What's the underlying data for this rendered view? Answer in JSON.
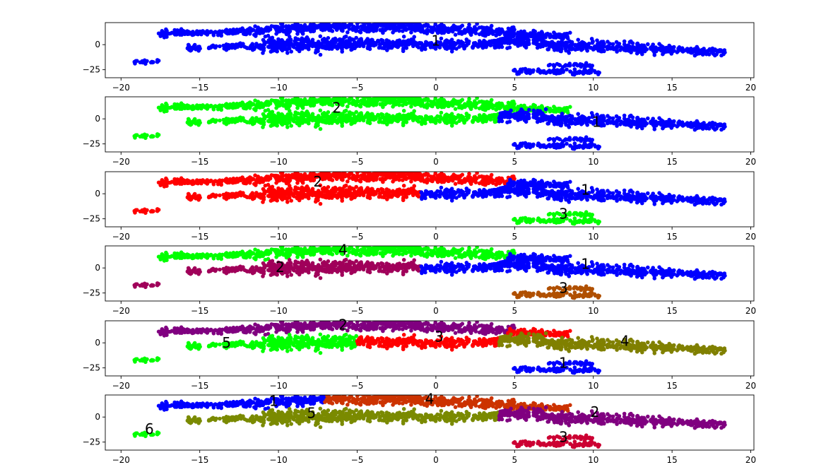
{
  "chart_data": {
    "type": "scatter",
    "xlim": [
      -21,
      20.2
    ],
    "ylim": [
      -33,
      22
    ],
    "xticks": [
      "−20",
      "−15",
      "−10",
      "−5",
      "0",
      "5",
      "10",
      "15",
      "20"
    ],
    "xtick_values": [
      -20,
      -15,
      -10,
      -5,
      0,
      5,
      10,
      15,
      20
    ],
    "yticks": [
      "0",
      "−25"
    ],
    "ytick_values": [
      0,
      -25
    ],
    "grid": false,
    "segments": [
      {
        "id": "s1",
        "x": [
          -17.7,
          -15.8
        ],
        "y": [
          9,
          14
        ],
        "w": 1.2
      },
      {
        "id": "s2",
        "x": [
          -15.8,
          -11.5
        ],
        "y": [
          11,
          14
        ],
        "w": 1.0
      },
      {
        "id": "s3",
        "x": [
          -11.5,
          -7.0
        ],
        "y": [
          14,
          18
        ],
        "w": 1.6
      },
      {
        "id": "s4",
        "x": [
          -7.0,
          -1.0
        ],
        "y": [
          17,
          19
        ],
        "w": 1.8
      },
      {
        "id": "s5",
        "x": [
          -1.0,
          5.0
        ],
        "y": [
          16,
          13
        ],
        "w": 1.4
      },
      {
        "id": "s6",
        "x": [
          4.5,
          8.5
        ],
        "y": [
          10,
          9
        ],
        "w": 1.2
      },
      {
        "id": "s7",
        "x": [
          -15.8,
          -11.0
        ],
        "y": [
          -3,
          -1
        ],
        "w": 1.0
      },
      {
        "id": "s8",
        "x": [
          -11.0,
          -5.0
        ],
        "y": [
          0,
          1
        ],
        "w": 2.2
      },
      {
        "id": "s9",
        "x": [
          -5.0,
          -1.0
        ],
        "y": [
          1,
          0
        ],
        "w": 1.6
      },
      {
        "id": "s10",
        "x": [
          -1.0,
          4.0
        ],
        "y": [
          -1,
          2
        ],
        "w": 1.4
      },
      {
        "id": "s11",
        "x": [
          4.0,
          7.0
        ],
        "y": [
          3,
          3
        ],
        "w": 1.8
      },
      {
        "id": "s12",
        "x": [
          7.0,
          11.0
        ],
        "y": [
          0,
          -2
        ],
        "w": 1.8
      },
      {
        "id": "s13",
        "x": [
          11.0,
          15.0
        ],
        "y": [
          -2,
          -5
        ],
        "w": 1.6
      },
      {
        "id": "s14",
        "x": [
          15.0,
          18.4
        ],
        "y": [
          -5,
          -8
        ],
        "w": 1.2
      },
      {
        "id": "s15",
        "x": [
          -19.2,
          -17.6
        ],
        "y": [
          -17,
          -17
        ],
        "w": 0.5
      },
      {
        "id": "s16",
        "x": [
          5.0,
          10.5
        ],
        "y": [
          -26.5,
          -27.5
        ],
        "w": 0.8
      },
      {
        "id": "s17",
        "x": [
          7.2,
          10.0
        ],
        "y": [
          -20.5,
          -20.5
        ],
        "w": 0.5
      }
    ],
    "panels": [
      {
        "assign": {
          "s1": "#0000ff",
          "s2": "#0000ff",
          "s3": "#0000ff",
          "s4": "#0000ff",
          "s5": "#0000ff",
          "s6": "#0000ff",
          "s7": "#0000ff",
          "s8": "#0000ff",
          "s9": "#0000ff",
          "s10": "#0000ff",
          "s11": "#0000ff",
          "s12": "#0000ff",
          "s13": "#0000ff",
          "s14": "#0000ff",
          "s15": "#0000ff",
          "s16": "#0000ff",
          "s17": "#0000ff"
        },
        "labels": [
          {
            "text": "1",
            "x": 0,
            "y": 4
          }
        ]
      },
      {
        "assign": {
          "s1": "#00ff00",
          "s2": "#00ff00",
          "s3": "#00ff00",
          "s4": "#00ff00",
          "s5": "#00ff00",
          "s6": "#00ff00",
          "s7": "#00ff00",
          "s8": "#00ff00",
          "s9": "#00ff00",
          "s10": "#00ff00",
          "s11": "#0000ff",
          "s12": "#0000ff",
          "s13": "#0000ff",
          "s14": "#0000ff",
          "s15": "#00ff00",
          "s16": "#0000ff",
          "s17": "#0000ff"
        },
        "labels": [
          {
            "text": "2",
            "x": -6.3,
            "y": 11
          },
          {
            "text": "1",
            "x": 10.2,
            "y": -3
          }
        ]
      },
      {
        "assign": {
          "s1": "#ff0000",
          "s2": "#ff0000",
          "s3": "#ff0000",
          "s4": "#ff0000",
          "s5": "#ff0000",
          "s6": "#0000ff",
          "s7": "#ff0000",
          "s8": "#ff0000",
          "s9": "#ff0000",
          "s10": "#0000ff",
          "s11": "#0000ff",
          "s12": "#0000ff",
          "s13": "#0000ff",
          "s14": "#0000ff",
          "s15": "#ff0000",
          "s16": "#00ff00",
          "s17": "#00ff00"
        },
        "labels": [
          {
            "text": "2",
            "x": -7.5,
            "y": 12
          },
          {
            "text": "1",
            "x": 9.5,
            "y": 4
          },
          {
            "text": "3",
            "x": 8.1,
            "y": -20
          }
        ]
      },
      {
        "assign": {
          "s1": "#00ff00",
          "s2": "#00ff00",
          "s3": "#00ff00",
          "s4": "#00ff00",
          "s5": "#00ff00",
          "s6": "#0000ff",
          "s7": "#a0005a",
          "s8": "#a0005a",
          "s9": "#a0005a",
          "s10": "#0000ff",
          "s11": "#0000ff",
          "s12": "#0000ff",
          "s13": "#0000ff",
          "s14": "#0000ff",
          "s15": "#a0005a",
          "s16": "#b05000",
          "s17": "#b05000"
        },
        "labels": [
          {
            "text": "4",
            "x": -5.9,
            "y": 18
          },
          {
            "text": "2",
            "x": -9.9,
            "y": 1
          },
          {
            "text": "1",
            "x": 9.5,
            "y": 4
          },
          {
            "text": "3",
            "x": 8.1,
            "y": -20
          }
        ]
      },
      {
        "assign": {
          "s1": "#800080",
          "s2": "#800080",
          "s3": "#800080",
          "s4": "#800080",
          "s5": "#800080",
          "s6": "#ff0000",
          "s7": "#00ff00",
          "s8": "#00ff00",
          "s9": "#ff0000",
          "s10": "#ff0000",
          "s11": "#808000",
          "s12": "#808000",
          "s13": "#808000",
          "s14": "#808000",
          "s15": "#00ff00",
          "s16": "#0000ff",
          "s17": "#0000ff"
        },
        "labels": [
          {
            "text": "2",
            "x": -5.9,
            "y": 18
          },
          {
            "text": "3",
            "x": 0.2,
            "y": 6
          },
          {
            "text": "5",
            "x": -13.3,
            "y": 0
          },
          {
            "text": "4",
            "x": 12.0,
            "y": 2
          },
          {
            "text": "1",
            "x": 8.1,
            "y": -20
          }
        ]
      },
      {
        "assign": {
          "s1": "#0000ff",
          "s2": "#0000ff",
          "s3": "#0000ff",
          "s4": "#cc3300",
          "s5": "#cc3300",
          "s6": "#cc3300",
          "s7": "#7a8a00",
          "s8": "#7a8a00",
          "s9": "#7a8a00",
          "s10": "#7a8a00",
          "s11": "#800080",
          "s12": "#800080",
          "s13": "#800080",
          "s14": "#800080",
          "s15": "#00ff00",
          "s16": "#cc0033",
          "s17": "#cc0033"
        },
        "labels": [
          {
            "text": "1",
            "x": -10.3,
            "y": 16
          },
          {
            "text": "4",
            "x": -0.4,
            "y": 18
          },
          {
            "text": "5",
            "x": -7.9,
            "y": 4
          },
          {
            "text": "2",
            "x": 10.1,
            "y": 5
          },
          {
            "text": "6",
            "x": -18.2,
            "y": -12
          },
          {
            "text": "3",
            "x": 8.1,
            "y": -20
          }
        ]
      }
    ]
  }
}
